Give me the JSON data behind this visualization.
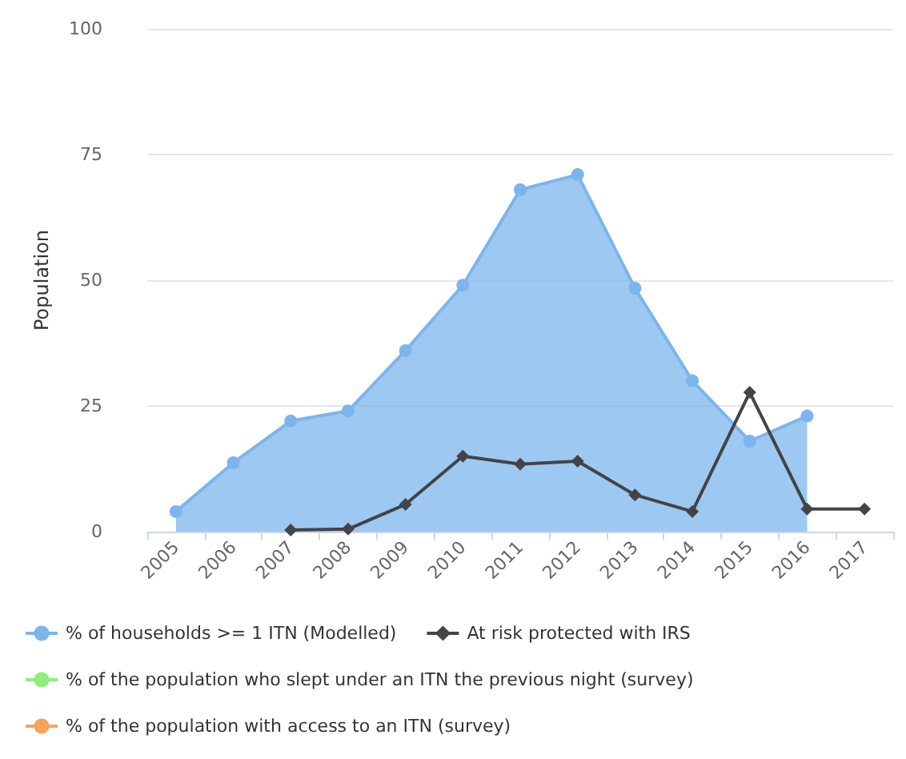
{
  "chart_data": {
    "type": "area",
    "ylabel": "Population",
    "categories": [
      "2005",
      "2006",
      "2007",
      "2008",
      "2009",
      "2010",
      "2011",
      "2012",
      "2013",
      "2014",
      "2015",
      "2016",
      "2017"
    ],
    "ylim": [
      0,
      100
    ],
    "yticks": [
      0,
      25,
      50,
      75,
      100
    ],
    "grid": "y",
    "legend": "bottom",
    "series": [
      {
        "name": "% of households >= 1 ITN (Modelled)",
        "color": "#7cb5ec",
        "marker": "circle",
        "values": [
          4,
          13.7,
          22,
          24,
          36,
          49,
          68,
          71,
          48.4,
          30,
          18,
          23,
          null
        ]
      },
      {
        "name": "At risk protected with IRS",
        "type": "line",
        "color": "#434348",
        "marker": "diamond",
        "values": [
          null,
          null,
          0.3,
          0.5,
          5.4,
          15,
          13.4,
          14,
          7.3,
          4,
          27.7,
          4.5,
          4.5
        ]
      },
      {
        "name": "% of the population who slept under an ITN the previous night (survey)",
        "color": "#90ed7d",
        "marker": "circle",
        "values": [
          null,
          null,
          null,
          null,
          null,
          null,
          null,
          null,
          null,
          null,
          null,
          null,
          null
        ]
      },
      {
        "name": "% of the population with access to an ITN (survey)",
        "color": "#f7a35c",
        "marker": "circle",
        "values": [
          null,
          null,
          null,
          null,
          null,
          null,
          null,
          null,
          null,
          null,
          null,
          null,
          null
        ]
      }
    ]
  }
}
